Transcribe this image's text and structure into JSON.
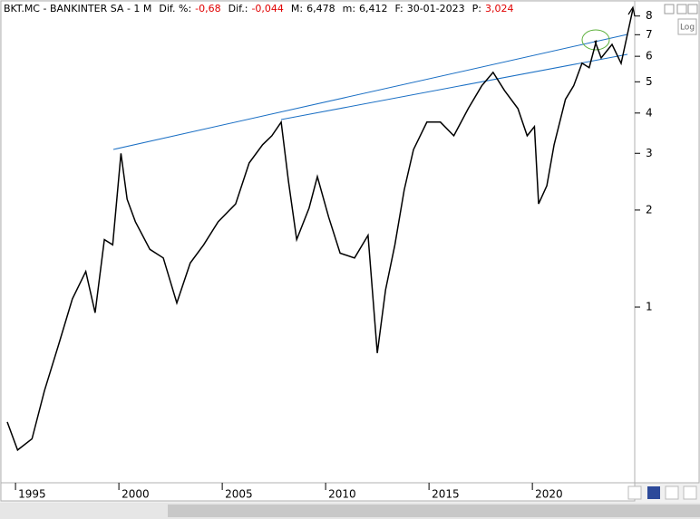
{
  "chart_data": {
    "type": "line",
    "title": "BKT.MC - BANKINTER SA - 1 M",
    "info": [
      {
        "label": "Dif. %:",
        "value": "-0,68",
        "color": "#e00000"
      },
      {
        "label": "Dif.:",
        "value": "-0,044",
        "color": "#e00000"
      },
      {
        "label": "M:",
        "value": "6,478",
        "color": "#000000"
      },
      {
        "label": "m:",
        "value": "6,412",
        "color": "#000000"
      },
      {
        "label": "F:",
        "value": "30-01-2023",
        "color": "#000000"
      },
      {
        "label": "P:",
        "value": "3,024",
        "color": "#e00000"
      }
    ],
    "log_button": "Log",
    "log_scale": true,
    "xlim": [
      1994.25,
      2024.95
    ],
    "xticks": [
      1995,
      2000,
      2005,
      2010,
      2015,
      2020
    ],
    "ylim": [
      0.285,
      8.3
    ],
    "yticks": [
      1,
      2,
      3,
      4,
      5,
      6,
      7,
      8
    ],
    "series": [
      {
        "color": "#000000",
        "x": [
          1994.6,
          1995.1,
          1995.8,
          1996.4,
          1997.1,
          1997.75,
          1998.4,
          1998.85,
          1999.3,
          1999.7,
          2000.1,
          2000.4,
          2000.8,
          2001.5,
          2002.15,
          2002.8,
          2003.45,
          2004.1,
          2004.8,
          2005.65,
          2006.3,
          2006.95,
          2007.4,
          2007.85,
          2008.2,
          2008.6,
          2009.2,
          2009.6,
          2010.15,
          2010.7,
          2011.4,
          2012.05,
          2012.5,
          2012.9,
          2013.35,
          2013.8,
          2014.25,
          2014.9,
          2015.55,
          2016.2,
          2016.9,
          2017.55,
          2018.1,
          2018.65,
          2019.3,
          2019.75,
          2020.1,
          2020.3,
          2020.7,
          2021.05,
          2021.6,
          2022.0,
          2022.4,
          2022.75,
          2023.1
        ],
        "values": [
          0.44,
          0.36,
          0.39,
          0.55,
          0.77,
          1.06,
          1.29,
          0.96,
          1.62,
          1.56,
          3.0,
          2.16,
          1.84,
          1.51,
          1.42,
          1.03,
          1.37,
          1.56,
          1.84,
          2.09,
          2.8,
          3.19,
          3.4,
          3.75,
          2.46,
          1.62,
          2.03,
          2.54,
          1.9,
          1.47,
          1.42,
          1.67,
          0.72,
          1.13,
          1.56,
          2.31,
          3.08,
          3.75,
          3.75,
          3.4,
          4.13,
          4.86,
          5.35,
          4.7,
          4.13,
          3.4,
          3.63,
          2.09,
          2.38,
          3.19,
          4.41,
          4.86,
          5.71,
          5.53,
          6.72
        ]
      }
    ]
  }
}
